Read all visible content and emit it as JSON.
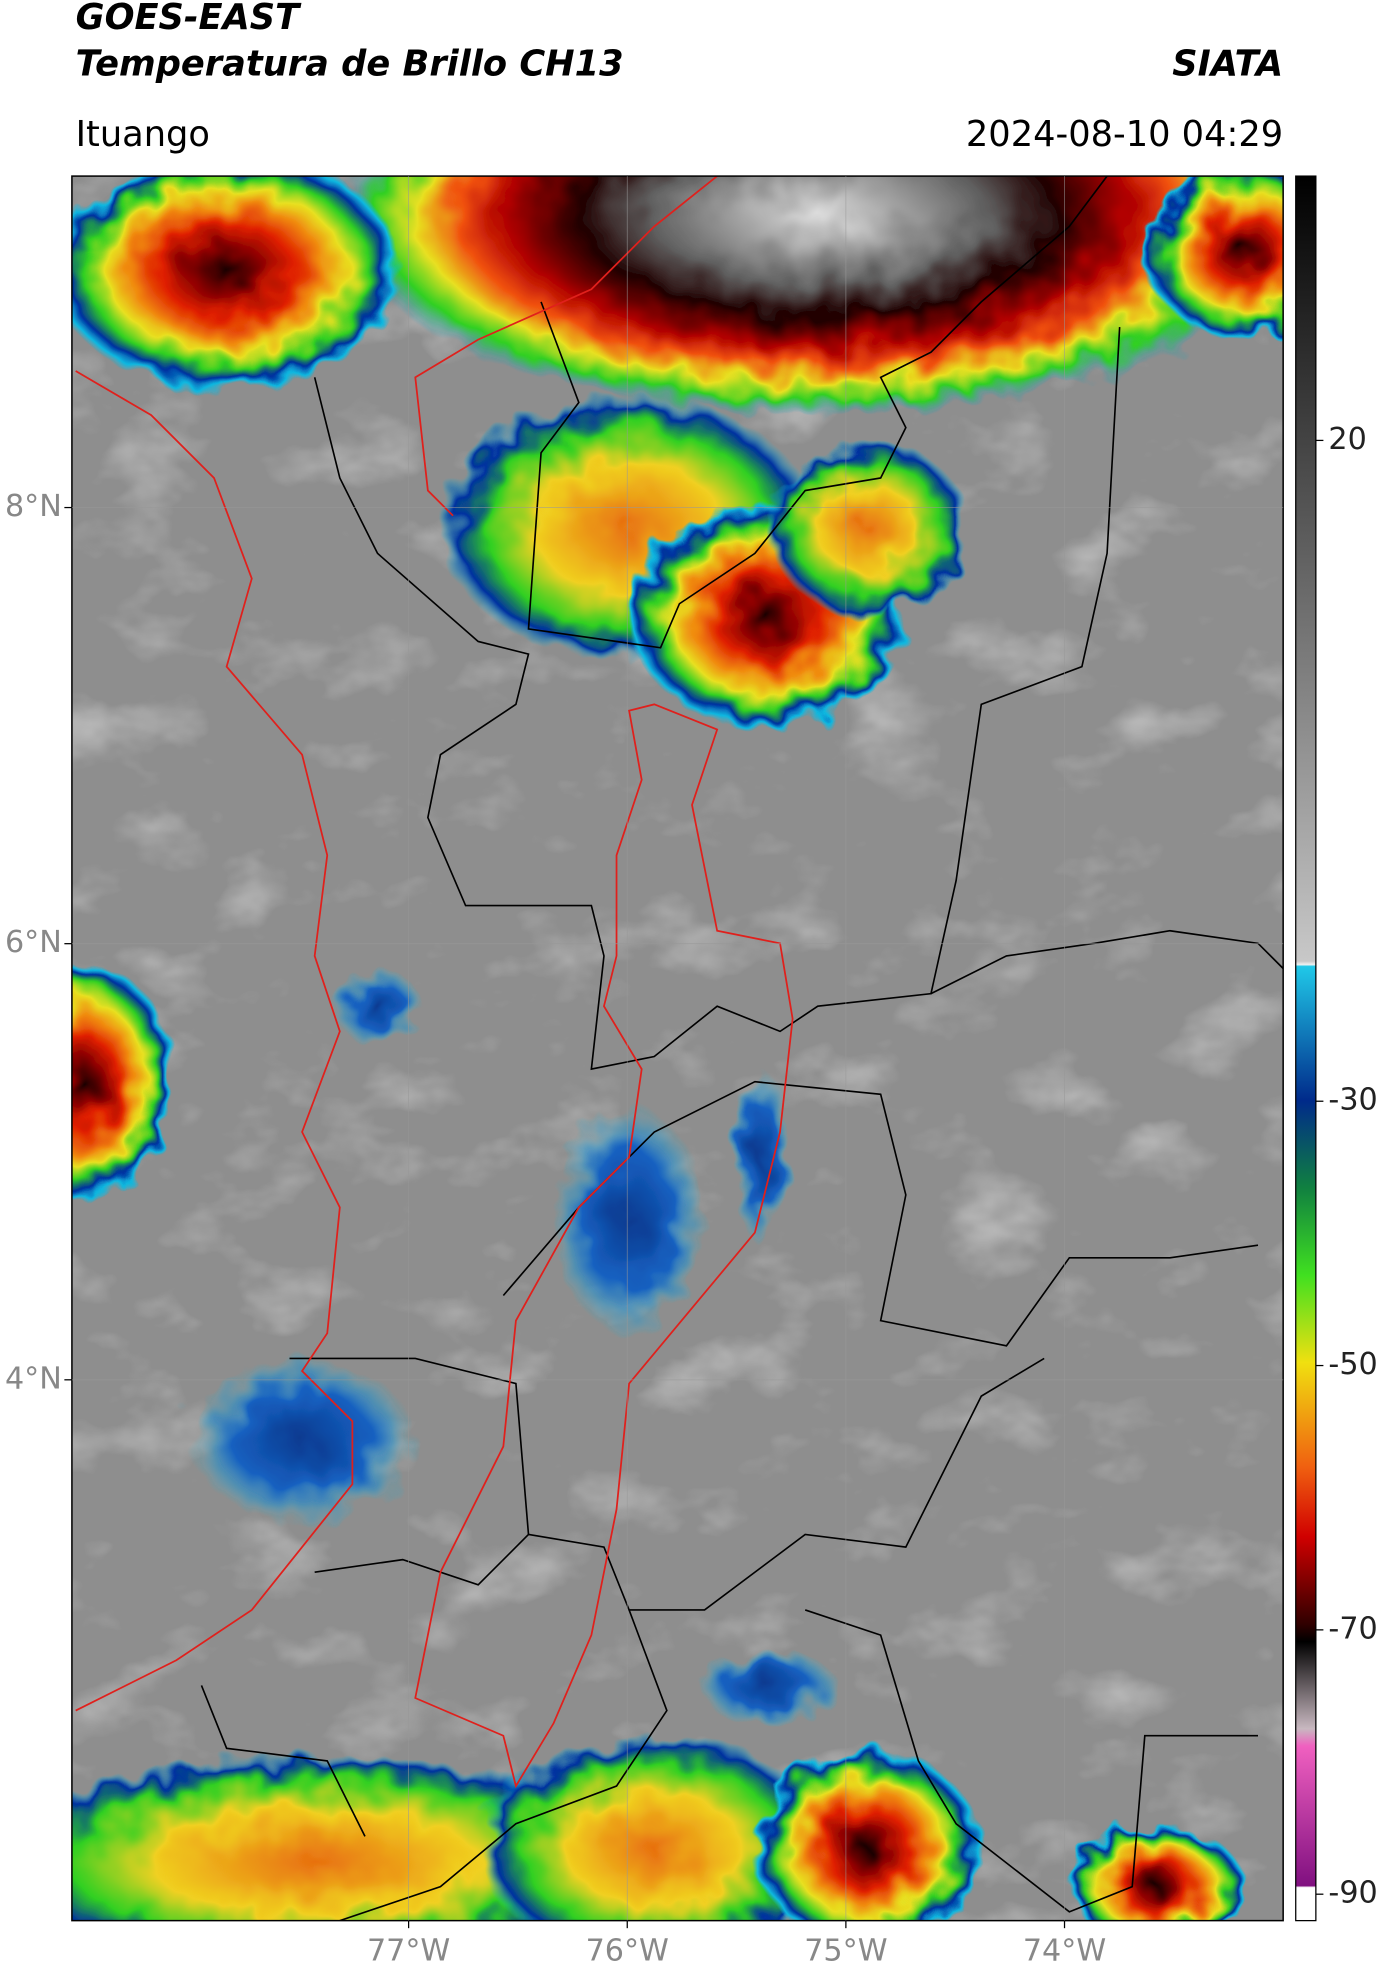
{
  "header": {
    "title": "GOES-EAST",
    "subtitle": "Temperatura de Brillo CH13",
    "agency": "SIATA",
    "location": "Ituango",
    "timestamp": "2024-08-10 04:29"
  },
  "map": {
    "xlim": [
      -78.54,
      -73.0
    ],
    "ylim": [
      1.52,
      9.52
    ],
    "grid": true,
    "xticks": [
      {
        "value": -77,
        "label": "77°W"
      },
      {
        "value": -76,
        "label": "76°W"
      },
      {
        "value": -75,
        "label": "75°W"
      },
      {
        "value": -74,
        "label": "74°W"
      }
    ],
    "yticks": [
      {
        "value": 8,
        "label": "8°N"
      },
      {
        "value": 6,
        "label": "6°N"
      },
      {
        "value": 4,
        "label": "4°N"
      }
    ]
  },
  "colorbar": {
    "lim": [
      -92,
      40
    ],
    "ticks": [
      20,
      -30,
      -50,
      -70,
      -90
    ]
  }
}
